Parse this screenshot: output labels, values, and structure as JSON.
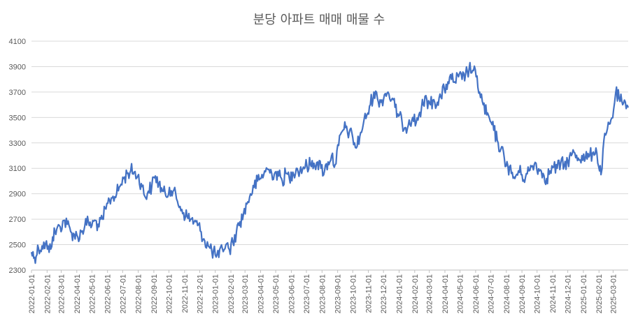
{
  "chart_data": {
    "type": "line",
    "title": "분당 아파트 매매 매물 수",
    "xlabel": "",
    "ylabel": "",
    "ylim": [
      2300,
      4100
    ],
    "y_ticks": [
      2300,
      2500,
      2700,
      2900,
      3100,
      3300,
      3500,
      3700,
      3900,
      4100
    ],
    "x_range": [
      "2022-01-01",
      "2025-03-31"
    ],
    "x_ticks": [
      "2022-01-01",
      "2022-02-01",
      "2022-03-01",
      "2022-04-01",
      "2022-05-01",
      "2022-06-01",
      "2022-07-01",
      "2022-08-01",
      "2022-09-01",
      "2022-10-01",
      "2022-11-01",
      "2022-12-01",
      "2023-01-01",
      "2023-02-01",
      "2023-03-01",
      "2023-04-01",
      "2023-05-01",
      "2023-06-01",
      "2023-07-01",
      "2023-08-01",
      "2023-09-01",
      "2023-10-01",
      "2023-11-01",
      "2023-12-01",
      "2024-01-01",
      "2024-02-01",
      "2024-03-01",
      "2024-04-01",
      "2024-05-01",
      "2024-06-01",
      "2024-07-01",
      "2024-08-01",
      "2024-09-01",
      "2024-10-01",
      "2024-11-01",
      "2024-12-01",
      "2025-01-01",
      "2025-02-01",
      "2025-03-01"
    ],
    "grid": true,
    "legend": "none",
    "series": [
      {
        "color": "#4472C4",
        "points": [
          {
            "x": "2022-01-01",
            "y": 2440
          },
          {
            "x": "2022-01-07",
            "y": 2400
          },
          {
            "x": "2022-01-15",
            "y": 2470
          },
          {
            "x": "2022-01-22",
            "y": 2490
          },
          {
            "x": "2022-01-29",
            "y": 2510
          },
          {
            "x": "2022-02-05",
            "y": 2440
          },
          {
            "x": "2022-02-12",
            "y": 2560
          },
          {
            "x": "2022-02-20",
            "y": 2620
          },
          {
            "x": "2022-02-27",
            "y": 2640
          },
          {
            "x": "2022-03-06",
            "y": 2690
          },
          {
            "x": "2022-03-13",
            "y": 2660
          },
          {
            "x": "2022-03-20",
            "y": 2600
          },
          {
            "x": "2022-03-27",
            "y": 2580
          },
          {
            "x": "2022-04-03",
            "y": 2560
          },
          {
            "x": "2022-04-10",
            "y": 2600
          },
          {
            "x": "2022-04-17",
            "y": 2650
          },
          {
            "x": "2022-04-24",
            "y": 2680
          },
          {
            "x": "2022-05-01",
            "y": 2650
          },
          {
            "x": "2022-05-08",
            "y": 2690
          },
          {
            "x": "2022-05-15",
            "y": 2640
          },
          {
            "x": "2022-05-22",
            "y": 2700
          },
          {
            "x": "2022-05-29",
            "y": 2780
          },
          {
            "x": "2022-06-05",
            "y": 2850
          },
          {
            "x": "2022-06-12",
            "y": 2880
          },
          {
            "x": "2022-06-19",
            "y": 2900
          },
          {
            "x": "2022-06-26",
            "y": 2960
          },
          {
            "x": "2022-07-03",
            "y": 3020
          },
          {
            "x": "2022-07-10",
            "y": 3060
          },
          {
            "x": "2022-07-17",
            "y": 3080
          },
          {
            "x": "2022-07-24",
            "y": 3070
          },
          {
            "x": "2022-07-31",
            "y": 3040
          },
          {
            "x": "2022-08-07",
            "y": 2980
          },
          {
            "x": "2022-08-14",
            "y": 2880
          },
          {
            "x": "2022-08-21",
            "y": 2920
          },
          {
            "x": "2022-08-28",
            "y": 2960
          },
          {
            "x": "2022-09-04",
            "y": 3040
          },
          {
            "x": "2022-09-11",
            "y": 2980
          },
          {
            "x": "2022-09-18",
            "y": 2920
          },
          {
            "x": "2022-09-25",
            "y": 2880
          },
          {
            "x": "2022-10-02",
            "y": 2950
          },
          {
            "x": "2022-10-09",
            "y": 2920
          },
          {
            "x": "2022-10-16",
            "y": 2860
          },
          {
            "x": "2022-10-23",
            "y": 2800
          },
          {
            "x": "2022-10-30",
            "y": 2750
          },
          {
            "x": "2022-11-06",
            "y": 2720
          },
          {
            "x": "2022-11-13",
            "y": 2700
          },
          {
            "x": "2022-11-20",
            "y": 2680
          },
          {
            "x": "2022-11-27",
            "y": 2650
          },
          {
            "x": "2022-12-04",
            "y": 2600
          },
          {
            "x": "2022-12-11",
            "y": 2530
          },
          {
            "x": "2022-12-18",
            "y": 2490
          },
          {
            "x": "2022-12-25",
            "y": 2450
          },
          {
            "x": "2023-01-01",
            "y": 2420
          },
          {
            "x": "2023-01-08",
            "y": 2400
          },
          {
            "x": "2023-01-15",
            "y": 2470
          },
          {
            "x": "2023-01-22",
            "y": 2500
          },
          {
            "x": "2023-01-29",
            "y": 2460
          },
          {
            "x": "2023-02-05",
            "y": 2520
          },
          {
            "x": "2023-02-12",
            "y": 2600
          },
          {
            "x": "2023-02-19",
            "y": 2680
          },
          {
            "x": "2023-02-26",
            "y": 2740
          },
          {
            "x": "2023-03-05",
            "y": 2820
          },
          {
            "x": "2023-03-12",
            "y": 2900
          },
          {
            "x": "2023-03-19",
            "y": 2950
          },
          {
            "x": "2023-03-26",
            "y": 3000
          },
          {
            "x": "2023-04-02",
            "y": 3020
          },
          {
            "x": "2023-04-09",
            "y": 3080
          },
          {
            "x": "2023-04-16",
            "y": 3090
          },
          {
            "x": "2023-04-23",
            "y": 3060
          },
          {
            "x": "2023-04-30",
            "y": 3070
          },
          {
            "x": "2023-05-07",
            "y": 3040
          },
          {
            "x": "2023-05-14",
            "y": 3000
          },
          {
            "x": "2023-05-21",
            "y": 3060
          },
          {
            "x": "2023-05-28",
            "y": 3020
          },
          {
            "x": "2023-06-04",
            "y": 3070
          },
          {
            "x": "2023-06-11",
            "y": 3100
          },
          {
            "x": "2023-06-18",
            "y": 3080
          },
          {
            "x": "2023-06-25",
            "y": 3110
          },
          {
            "x": "2023-07-02",
            "y": 3120
          },
          {
            "x": "2023-07-09",
            "y": 3130
          },
          {
            "x": "2023-07-16",
            "y": 3140
          },
          {
            "x": "2023-07-23",
            "y": 3150
          },
          {
            "x": "2023-07-30",
            "y": 3100
          },
          {
            "x": "2023-08-06",
            "y": 3080
          },
          {
            "x": "2023-08-13",
            "y": 3150
          },
          {
            "x": "2023-08-20",
            "y": 3200
          },
          {
            "x": "2023-08-27",
            "y": 3130
          },
          {
            "x": "2023-09-03",
            "y": 3280
          },
          {
            "x": "2023-09-10",
            "y": 3390
          },
          {
            "x": "2023-09-17",
            "y": 3420
          },
          {
            "x": "2023-09-24",
            "y": 3380
          },
          {
            "x": "2023-10-01",
            "y": 3340
          },
          {
            "x": "2023-10-08",
            "y": 3260
          },
          {
            "x": "2023-10-15",
            "y": 3350
          },
          {
            "x": "2023-10-22",
            "y": 3450
          },
          {
            "x": "2023-10-29",
            "y": 3520
          },
          {
            "x": "2023-11-05",
            "y": 3600
          },
          {
            "x": "2023-11-12",
            "y": 3700
          },
          {
            "x": "2023-11-19",
            "y": 3650
          },
          {
            "x": "2023-11-26",
            "y": 3620
          },
          {
            "x": "2023-12-03",
            "y": 3680
          },
          {
            "x": "2023-12-10",
            "y": 3700
          },
          {
            "x": "2023-12-17",
            "y": 3640
          },
          {
            "x": "2023-12-24",
            "y": 3580
          },
          {
            "x": "2023-12-31",
            "y": 3510
          },
          {
            "x": "2024-01-07",
            "y": 3460
          },
          {
            "x": "2024-01-14",
            "y": 3420
          },
          {
            "x": "2024-01-21",
            "y": 3480
          },
          {
            "x": "2024-01-28",
            "y": 3500
          },
          {
            "x": "2024-02-04",
            "y": 3460
          },
          {
            "x": "2024-02-11",
            "y": 3540
          },
          {
            "x": "2024-02-18",
            "y": 3600
          },
          {
            "x": "2024-02-25",
            "y": 3640
          },
          {
            "x": "2024-03-03",
            "y": 3600
          },
          {
            "x": "2024-03-10",
            "y": 3640
          },
          {
            "x": "2024-03-17",
            "y": 3620
          },
          {
            "x": "2024-03-24",
            "y": 3660
          },
          {
            "x": "2024-03-31",
            "y": 3720
          },
          {
            "x": "2024-04-07",
            "y": 3780
          },
          {
            "x": "2024-04-14",
            "y": 3800
          },
          {
            "x": "2024-04-21",
            "y": 3780
          },
          {
            "x": "2024-04-28",
            "y": 3820
          },
          {
            "x": "2024-05-05",
            "y": 3800
          },
          {
            "x": "2024-05-12",
            "y": 3840
          },
          {
            "x": "2024-05-19",
            "y": 3880
          },
          {
            "x": "2024-05-26",
            "y": 3870
          },
          {
            "x": "2024-06-02",
            "y": 3820
          },
          {
            "x": "2024-06-09",
            "y": 3700
          },
          {
            "x": "2024-06-16",
            "y": 3600
          },
          {
            "x": "2024-06-23",
            "y": 3520
          },
          {
            "x": "2024-06-30",
            "y": 3470
          },
          {
            "x": "2024-07-07",
            "y": 3400
          },
          {
            "x": "2024-07-14",
            "y": 3320
          },
          {
            "x": "2024-07-21",
            "y": 3250
          },
          {
            "x": "2024-07-28",
            "y": 3180
          },
          {
            "x": "2024-08-04",
            "y": 3120
          },
          {
            "x": "2024-08-11",
            "y": 3060
          },
          {
            "x": "2024-08-18",
            "y": 3020
          },
          {
            "x": "2024-08-25",
            "y": 3080
          },
          {
            "x": "2024-09-01",
            "y": 3050
          },
          {
            "x": "2024-09-08",
            "y": 3030
          },
          {
            "x": "2024-09-15",
            "y": 3080
          },
          {
            "x": "2024-09-22",
            "y": 3120
          },
          {
            "x": "2024-09-29",
            "y": 3140
          },
          {
            "x": "2024-10-06",
            "y": 3080
          },
          {
            "x": "2024-10-13",
            "y": 3060
          },
          {
            "x": "2024-10-20",
            "y": 3020
          },
          {
            "x": "2024-10-27",
            "y": 3080
          },
          {
            "x": "2024-11-03",
            "y": 3110
          },
          {
            "x": "2024-11-10",
            "y": 3100
          },
          {
            "x": "2024-11-17",
            "y": 3140
          },
          {
            "x": "2024-11-24",
            "y": 3120
          },
          {
            "x": "2024-12-01",
            "y": 3160
          },
          {
            "x": "2024-12-08",
            "y": 3200
          },
          {
            "x": "2024-12-15",
            "y": 3220
          },
          {
            "x": "2024-12-22",
            "y": 3180
          },
          {
            "x": "2024-12-29",
            "y": 3200
          },
          {
            "x": "2025-01-05",
            "y": 3180
          },
          {
            "x": "2025-01-12",
            "y": 3190
          },
          {
            "x": "2025-01-19",
            "y": 3220
          },
          {
            "x": "2025-01-26",
            "y": 3260
          },
          {
            "x": "2025-02-02",
            "y": 3080
          },
          {
            "x": "2025-02-05",
            "y": 3050
          },
          {
            "x": "2025-02-09",
            "y": 3250
          },
          {
            "x": "2025-02-16",
            "y": 3380
          },
          {
            "x": "2025-02-23",
            "y": 3450
          },
          {
            "x": "2025-03-02",
            "y": 3560
          },
          {
            "x": "2025-03-06",
            "y": 3690
          },
          {
            "x": "2025-03-13",
            "y": 3650
          },
          {
            "x": "2025-03-20",
            "y": 3600
          },
          {
            "x": "2025-03-27",
            "y": 3570
          },
          {
            "x": "2025-03-31",
            "y": 3580
          }
        ]
      }
    ]
  }
}
